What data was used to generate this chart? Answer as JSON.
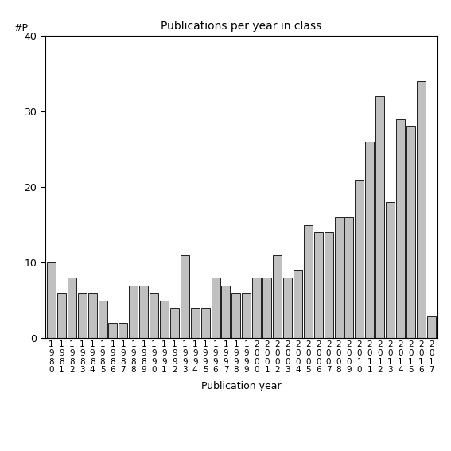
{
  "title": "Publications per year in class",
  "xlabel": "Publication year",
  "ylabel": "#P",
  "years": [
    1980,
    1981,
    1982,
    1983,
    1984,
    1985,
    1986,
    1987,
    1988,
    1989,
    1990,
    1991,
    1992,
    1993,
    1994,
    1995,
    1996,
    1997,
    1998,
    1999,
    2000,
    2001,
    2002,
    2003,
    2004,
    2005,
    2006,
    2007,
    2008,
    2009,
    2010,
    2011,
    2012,
    2013,
    2014,
    2015,
    2016,
    2017
  ],
  "values": [
    10,
    6,
    8,
    6,
    6,
    5,
    2,
    2,
    7,
    7,
    6,
    5,
    4,
    11,
    4,
    4,
    8,
    7,
    6,
    6,
    8,
    8,
    11,
    8,
    9,
    15,
    14,
    14,
    16,
    16,
    21,
    26,
    32,
    18,
    29,
    28,
    34,
    3
  ],
  "bar_color": "#c0c0c0",
  "bar_edge_color": "#000000",
  "ylim": [
    0,
    40
  ],
  "yticks": [
    0,
    10,
    20,
    30,
    40
  ],
  "background_color": "#ffffff",
  "figsize": [
    5.67,
    5.67
  ],
  "dpi": 100
}
